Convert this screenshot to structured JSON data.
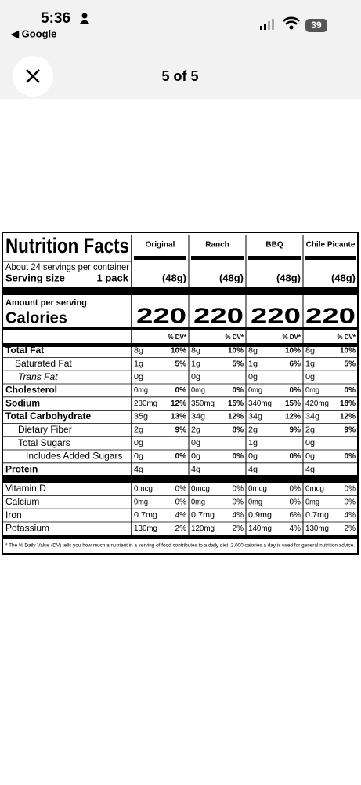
{
  "status": {
    "time": "5:36",
    "back": "◀ Google",
    "battery": "39"
  },
  "header": {
    "counter": "5 of 5"
  },
  "label": {
    "title": "Nutrition Facts",
    "servings": "About 24 servings per container",
    "serving_size_label": "Serving size",
    "serving_size_value": "1 pack",
    "columns": [
      "Original",
      "Ranch",
      "BBQ",
      "Chile Picante"
    ],
    "serving_grams": [
      "(48g)",
      "(48g)",
      "(48g)",
      "(48g)"
    ],
    "amount_label": "Amount per serving",
    "calories_label": "Calories",
    "calories": [
      "220",
      "220",
      "220",
      "220"
    ],
    "dv_header": [
      "% DV*",
      "% DV*",
      "% DV*",
      "% DV*"
    ],
    "rows": [
      {
        "name": "Total Fat",
        "values": [
          [
            "8g",
            "10%"
          ],
          [
            "8g",
            "10%"
          ],
          [
            "8g",
            "10%"
          ],
          [
            "8g",
            "10%"
          ]
        ]
      },
      {
        "name": "Saturated Fat",
        "values": [
          [
            "1g",
            "5%"
          ],
          [
            "1g",
            "5%"
          ],
          [
            "1g",
            "6%"
          ],
          [
            "1g",
            "5%"
          ]
        ]
      },
      {
        "name": "Trans Fat",
        "values": [
          [
            "0g"
          ],
          [
            "0g"
          ],
          [
            "0g"
          ],
          [
            "0g"
          ]
        ]
      },
      {
        "name": "Cholesterol",
        "values": [
          [
            "0mg",
            "0%"
          ],
          [
            "0mg",
            "0%"
          ],
          [
            "0mg",
            "0%"
          ],
          [
            "0mg",
            "0%"
          ]
        ]
      },
      {
        "name": "Sodium",
        "values": [
          [
            "280mg",
            "12%"
          ],
          [
            "350mg",
            "15%"
          ],
          [
            "340mg",
            "15%"
          ],
          [
            "420mg",
            "18%"
          ]
        ]
      },
      {
        "name": "Total Carbohydrate",
        "values": [
          [
            "35g",
            "13%"
          ],
          [
            "34g",
            "12%"
          ],
          [
            "34g",
            "12%"
          ],
          [
            "34g",
            "12%"
          ]
        ]
      },
      {
        "name": "Dietary Fiber",
        "values": [
          [
            "2g",
            "9%"
          ],
          [
            "2g",
            "8%"
          ],
          [
            "2g",
            "9%"
          ],
          [
            "2g",
            "9%"
          ]
        ]
      },
      {
        "name": "Total Sugars",
        "values": [
          [
            "0g"
          ],
          [
            "0g"
          ],
          [
            "1g"
          ],
          [
            "0g"
          ]
        ]
      },
      {
        "name": "Includes Added Sugars",
        "values": [
          [
            "0g",
            "0%"
          ],
          [
            "0g",
            "0%"
          ],
          [
            "0g",
            "0%"
          ],
          [
            "0g",
            "0%"
          ]
        ]
      },
      {
        "name": "Protein",
        "values": [
          [
            "4g"
          ],
          [
            "4g"
          ],
          [
            "4g"
          ],
          [
            "4g"
          ]
        ]
      },
      {
        "name": "Vitamin D",
        "values": [
          [
            "0mcg",
            "0%"
          ],
          [
            "0mcg",
            "0%"
          ],
          [
            "0mcg",
            "0%"
          ],
          [
            "0mcg",
            "0%"
          ]
        ]
      },
      {
        "name": "Calcium",
        "values": [
          [
            "0mg",
            "0%"
          ],
          [
            "0mg",
            "0%"
          ],
          [
            "0mg",
            "0%"
          ],
          [
            "0mg",
            "0%"
          ]
        ]
      },
      {
        "name": "Iron",
        "values": [
          [
            "0.7mg",
            "4%"
          ],
          [
            "0.7mg",
            "4%"
          ],
          [
            "0.9mg",
            "6%"
          ],
          [
            "0.7mg",
            "4%"
          ]
        ]
      },
      {
        "name": "Potassium",
        "values": [
          [
            "130mg",
            "2%"
          ],
          [
            "120mg",
            "2%"
          ],
          [
            "140mg",
            "4%"
          ],
          [
            "130mg",
            "2%"
          ]
        ]
      }
    ],
    "footnote": "* The % Daily Value (DV) tells you how much a nutrient in a serving of food contributes to a daily diet. 2,000 calories a day is used for general nutrition advice."
  }
}
